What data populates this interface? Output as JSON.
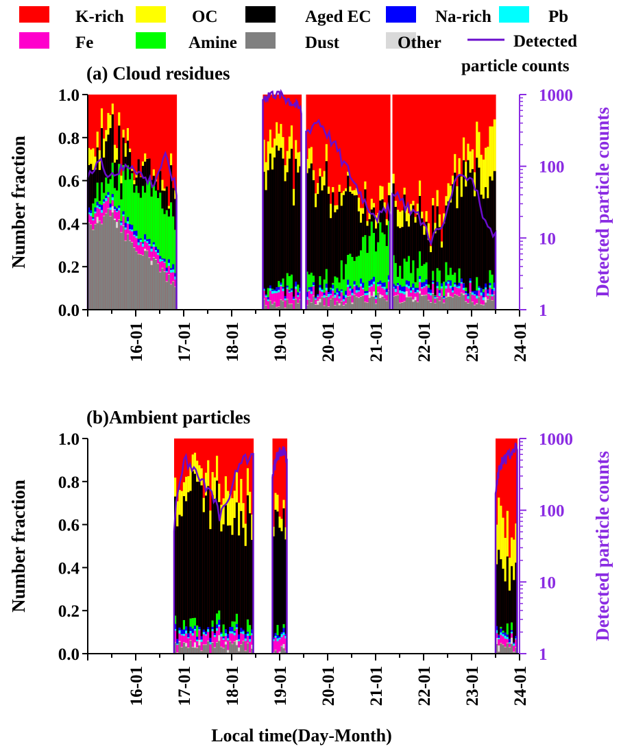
{
  "legend": {
    "items": [
      {
        "label": "K-rich",
        "color": "#ff0000",
        "kind": "box"
      },
      {
        "label": "OC",
        "color": "#ffff00",
        "kind": "box"
      },
      {
        "label": "Aged EC",
        "color": "#000000",
        "kind": "box"
      },
      {
        "label": "Na-rich",
        "color": "#0000ff",
        "kind": "box"
      },
      {
        "label": "Pb",
        "color": "#00ffff",
        "kind": "box"
      },
      {
        "label": "Fe",
        "color": "#ff00cc",
        "kind": "box"
      },
      {
        "label": "Amine",
        "color": "#00ff00",
        "kind": "box"
      },
      {
        "label": "Dust",
        "color": "#808080",
        "kind": "box"
      },
      {
        "label": "Other",
        "color": "#d9d9d9",
        "kind": "box"
      },
      {
        "label_line1": "Detected",
        "label_line2": "particle counts",
        "color": "#6a0dcc",
        "kind": "line"
      }
    ]
  },
  "xaxis_label": "Local time(Day-Month)",
  "chart_data": [
    {
      "type": "area",
      "title": "(a) Cloud residues",
      "ylabel": "Number fraction",
      "y2label": "Detected particle counts",
      "ylim": [
        0,
        1.0
      ],
      "y2lim": [
        1,
        1000
      ],
      "y2scale": "log",
      "yticks": [
        "0.0",
        "0.2",
        "0.4",
        "0.6",
        "0.8",
        "1.0"
      ],
      "y2ticks": [
        "1",
        "10",
        "100",
        "1000"
      ],
      "xticks": [
        "16-01",
        "17-01",
        "18-01",
        "19-01",
        "20-01",
        "21-01",
        "22-01",
        "23-01",
        "24-01"
      ],
      "xlim": [
        15.0,
        24.0
      ],
      "series_order": [
        "Dust",
        "Other",
        "Fe",
        "Pb",
        "Na-rich",
        "Amine",
        "Aged EC",
        "OC",
        "K-rich"
      ],
      "segments": [
        {
          "start": 15.0,
          "end": 16.85,
          "dust": [
            0.38,
            0.45,
            0.3,
            0.22,
            0.1
          ],
          "fe": [
            0.05,
            0.04,
            0.05,
            0.04,
            0.04
          ],
          "amine": [
            0.0,
            0.1,
            0.22,
            0.26,
            0.25
          ],
          "ec": [
            0.22,
            0.18,
            0.1,
            0.12,
            0.12
          ],
          "oc": [
            0.08,
            0.08,
            0.02,
            0.02,
            0.03
          ]
        },
        {
          "start": 18.65,
          "end": 19.45,
          "dust": [
            0.02,
            0.02,
            0.02,
            0.02,
            0.02
          ],
          "fe": [
            0.05,
            0.05,
            0.05,
            0.04,
            0.04
          ],
          "amine": [
            0.01,
            0.01,
            0.01,
            0.01,
            0.01
          ],
          "ec": [
            0.55,
            0.58,
            0.56,
            0.5,
            0.52
          ],
          "oc": [
            0.15,
            0.12,
            0.1,
            0.08,
            0.08
          ]
        },
        {
          "start": 19.55,
          "end": 21.3,
          "dust": [
            0.03,
            0.04,
            0.05,
            0.05,
            0.06
          ],
          "fe": [
            0.03,
            0.03,
            0.03,
            0.03,
            0.03
          ],
          "amine": [
            0.04,
            0.05,
            0.1,
            0.22,
            0.25
          ],
          "ec": [
            0.5,
            0.42,
            0.3,
            0.15,
            0.05
          ],
          "oc": [
            0.08,
            0.05,
            0.04,
            0.04,
            0.04
          ]
        },
        {
          "start": 21.35,
          "end": 23.5,
          "dust": [
            0.04,
            0.05,
            0.06,
            0.05,
            0.05
          ],
          "fe": [
            0.03,
            0.03,
            0.03,
            0.03,
            0.03
          ],
          "amine": [
            0.08,
            0.06,
            0.04,
            0.01,
            0.01
          ],
          "ec": [
            0.25,
            0.2,
            0.25,
            0.55,
            0.45
          ],
          "oc": [
            0.05,
            0.05,
            0.05,
            0.1,
            0.25
          ]
        }
      ],
      "counts": [
        {
          "start": 15.0,
          "end": 16.85,
          "values": [
            60,
            120,
            80,
            90,
            110,
            70,
            60,
            130,
            40
          ]
        },
        {
          "start": 18.65,
          "end": 19.45,
          "values": [
            900,
            1100,
            1000,
            800,
            600
          ]
        },
        {
          "start": 19.55,
          "end": 21.3,
          "values": [
            300,
            450,
            250,
            120,
            60,
            30,
            20,
            25
          ]
        },
        {
          "start": 21.35,
          "end": 23.5,
          "values": [
            40,
            30,
            20,
            10,
            15,
            60,
            80,
            20,
            10
          ]
        }
      ]
    },
    {
      "type": "area",
      "title": "(b)Ambient particles",
      "ylabel": "Number fraction",
      "y2label": "Detected particle counts",
      "ylim": [
        0,
        1.0
      ],
      "y2lim": [
        1,
        1000
      ],
      "y2scale": "log",
      "yticks": [
        "0.0",
        "0.2",
        "0.4",
        "0.6",
        "0.8",
        "1.0"
      ],
      "y2ticks": [
        "1",
        "10",
        "100",
        "1000"
      ],
      "xticks": [
        "16-01",
        "17-01",
        "18-01",
        "19-01",
        "20-01",
        "21-01",
        "22-01",
        "23-01",
        "24-01"
      ],
      "xlim": [
        15.0,
        24.0
      ],
      "series_order": [
        "Dust",
        "Other",
        "Fe",
        "Pb",
        "Na-rich",
        "Amine",
        "Aged EC",
        "OC",
        "K-rich"
      ],
      "segments": [
        {
          "start": 16.8,
          "end": 18.45,
          "dust": [
            0.03,
            0.03,
            0.03,
            0.03,
            0.03
          ],
          "fe": [
            0.04,
            0.04,
            0.04,
            0.04,
            0.04
          ],
          "amine": [
            0.0,
            0.0,
            0.0,
            0.0,
            0.0
          ],
          "ec": [
            0.55,
            0.65,
            0.55,
            0.45,
            0.5
          ],
          "oc": [
            0.1,
            0.08,
            0.1,
            0.15,
            0.1
          ]
        },
        {
          "start": 18.85,
          "end": 19.15,
          "dust": [
            0.02,
            0.02,
            0.02,
            0.02,
            0.02
          ],
          "fe": [
            0.05,
            0.05,
            0.05,
            0.05,
            0.05
          ],
          "amine": [
            0.0,
            0.0,
            0.0,
            0.0,
            0.0
          ],
          "ec": [
            0.55,
            0.55,
            0.52,
            0.5,
            0.5
          ],
          "oc": [
            0.05,
            0.05,
            0.05,
            0.05,
            0.05
          ]
        },
        {
          "start": 23.5,
          "end": 23.95,
          "dust": [
            0.03,
            0.03,
            0.03,
            0.03,
            0.03
          ],
          "fe": [
            0.03,
            0.03,
            0.03,
            0.03,
            0.03
          ],
          "amine": [
            0.0,
            0.0,
            0.0,
            0.0,
            0.0
          ],
          "ec": [
            0.35,
            0.3,
            0.28,
            0.3,
            0.32
          ],
          "oc": [
            0.2,
            0.25,
            0.2,
            0.15,
            0.2
          ]
        }
      ],
      "counts": [
        {
          "start": 16.8,
          "end": 18.45,
          "values": [
            50,
            500,
            350,
            200,
            80,
            150,
            500,
            600
          ]
        },
        {
          "start": 18.85,
          "end": 19.15,
          "values": [
            300,
            700,
            600
          ]
        },
        {
          "start": 23.5,
          "end": 23.95,
          "values": [
            200,
            500,
            600,
            800
          ]
        }
      ]
    }
  ]
}
